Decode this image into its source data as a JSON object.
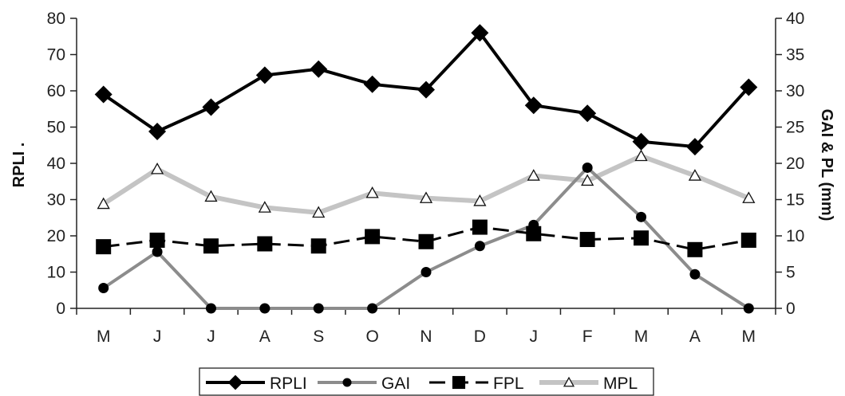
{
  "chart_data": {
    "type": "line",
    "categories": [
      "M",
      "J",
      "J",
      "A",
      "S",
      "O",
      "N",
      "D",
      "J",
      "F",
      "M",
      "A",
      "M"
    ],
    "ylabel": "RPLI   .",
    "y2label": "GAI & PL (mm)",
    "ylim": [
      0,
      80
    ],
    "yticks": [
      0,
      10,
      20,
      30,
      40,
      50,
      60,
      70,
      80
    ],
    "y2lim": [
      0,
      40
    ],
    "y2ticks": [
      0,
      5,
      10,
      15,
      20,
      25,
      30,
      35,
      40
    ],
    "grid": false,
    "legend_position": "bottom",
    "series": [
      {
        "name": "RPLI",
        "axis": "left",
        "color": "#000000",
        "marker": "diamond",
        "dash": "solid",
        "values": [
          59,
          48.8,
          55.5,
          64.3,
          66,
          61.8,
          60.3,
          76,
          56,
          53.8,
          46,
          44.6,
          61
        ]
      },
      {
        "name": "GAI",
        "axis": "right",
        "color": "#8c8c8c",
        "marker": "circle",
        "dash": "solid",
        "values": [
          2.8,
          7.8,
          0,
          0,
          0,
          0,
          5,
          8.6,
          11.5,
          19.4,
          12.6,
          4.7,
          0
        ]
      },
      {
        "name": "FPL",
        "axis": "right",
        "color": "#000000",
        "marker": "square",
        "dash": "dashed",
        "values": [
          8.5,
          9.4,
          8.6,
          8.9,
          8.6,
          9.9,
          9.2,
          11.2,
          10.3,
          9.5,
          9.7,
          8.1,
          9.4
        ]
      },
      {
        "name": "MPL",
        "axis": "right",
        "color": "#c4c4c4",
        "marker": "triangle",
        "dash": "solid",
        "values": [
          14.4,
          19.2,
          15.4,
          13.9,
          13.2,
          15.9,
          15.2,
          14.8,
          18.3,
          17.6,
          21,
          18.3,
          15.2
        ]
      }
    ]
  }
}
